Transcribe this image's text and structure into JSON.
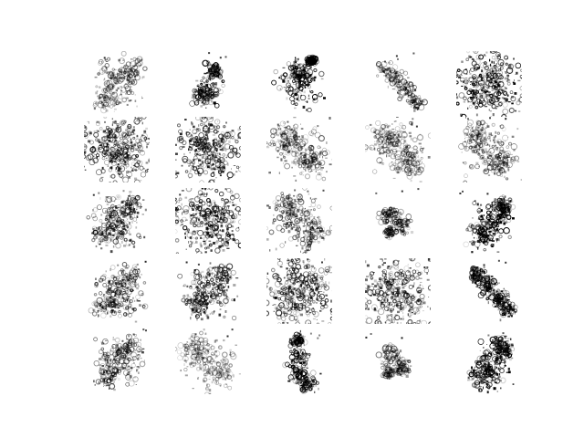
{
  "figure": {
    "kind": "image grid",
    "rows": 5,
    "columns": 5,
    "colors": {
      "background": "#ffffff",
      "ink": "#000000"
    },
    "tiles": [
      {
        "row": 1,
        "col": 1,
        "shape": "scatter",
        "density": 0.42,
        "darkness": 0.35
      },
      {
        "row": 1,
        "col": 2,
        "shape": "small-figure",
        "density": 0.33,
        "darkness": 0.65
      },
      {
        "row": 1,
        "col": 3,
        "shape": "block",
        "density": 0.6,
        "darkness": 0.75
      },
      {
        "row": 1,
        "col": 4,
        "shape": "diagonal",
        "density": 0.22,
        "darkness": 0.45
      },
      {
        "row": 1,
        "col": 5,
        "shape": "dense",
        "density": 0.75,
        "darkness": 0.7
      },
      {
        "row": 2,
        "col": 1,
        "shape": "dense",
        "density": 0.72,
        "darkness": 0.55
      },
      {
        "row": 2,
        "col": 2,
        "shape": "dense",
        "density": 0.7,
        "darkness": 0.55
      },
      {
        "row": 2,
        "col": 3,
        "shape": "cloud",
        "density": 0.55,
        "darkness": 0.35
      },
      {
        "row": 2,
        "col": 4,
        "shape": "cloud",
        "density": 0.58,
        "darkness": 0.3
      },
      {
        "row": 2,
        "col": 5,
        "shape": "cloud",
        "density": 0.58,
        "darkness": 0.35
      },
      {
        "row": 3,
        "col": 1,
        "shape": "scatter",
        "density": 0.6,
        "darkness": 0.5
      },
      {
        "row": 3,
        "col": 2,
        "shape": "dense",
        "density": 0.68,
        "darkness": 0.6
      },
      {
        "row": 3,
        "col": 3,
        "shape": "cloud",
        "density": 0.58,
        "darkness": 0.4
      },
      {
        "row": 3,
        "col": 4,
        "shape": "small-cluster",
        "density": 0.22,
        "darkness": 0.5
      },
      {
        "row": 3,
        "col": 5,
        "shape": "blob",
        "density": 0.6,
        "darkness": 0.75
      },
      {
        "row": 4,
        "col": 1,
        "shape": "scatter",
        "density": 0.52,
        "darkness": 0.5
      },
      {
        "row": 4,
        "col": 2,
        "shape": "scatter",
        "density": 0.5,
        "darkness": 0.55
      },
      {
        "row": 4,
        "col": 3,
        "shape": "dense",
        "density": 0.8,
        "darkness": 0.55
      },
      {
        "row": 4,
        "col": 4,
        "shape": "dense",
        "density": 0.7,
        "darkness": 0.5
      },
      {
        "row": 4,
        "col": 5,
        "shape": "diagonal",
        "density": 0.55,
        "darkness": 0.7
      },
      {
        "row": 5,
        "col": 1,
        "shape": "scatter",
        "density": 0.45,
        "darkness": 0.45
      },
      {
        "row": 5,
        "col": 2,
        "shape": "cloud",
        "density": 0.5,
        "darkness": 0.25
      },
      {
        "row": 5,
        "col": 3,
        "shape": "vertical",
        "density": 0.45,
        "darkness": 0.7
      },
      {
        "row": 5,
        "col": 4,
        "shape": "small-cluster",
        "density": 0.28,
        "darkness": 0.4
      },
      {
        "row": 5,
        "col": 5,
        "shape": "blob",
        "density": 0.7,
        "darkness": 0.7
      }
    ]
  }
}
